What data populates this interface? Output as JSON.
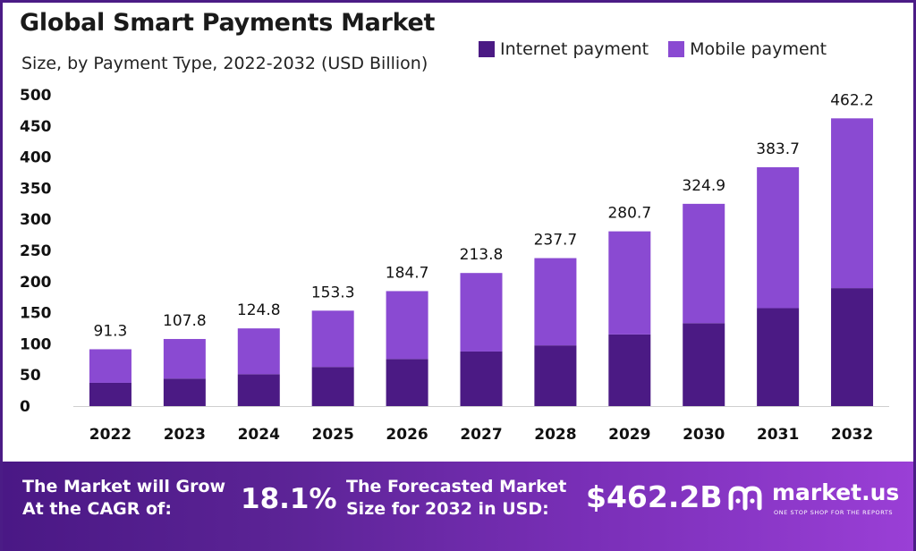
{
  "colors": {
    "internet": "#4b1a84",
    "mobile": "#8a4ad2",
    "brand": "#4b1c86"
  },
  "chart_data": {
    "type": "bar",
    "stacked": true,
    "title": "Global Smart Payments Market",
    "subtitle": "Size, by Payment Type, 2022-2032 (USD Billion)",
    "categories": [
      "2022",
      "2023",
      "2024",
      "2025",
      "2026",
      "2027",
      "2028",
      "2029",
      "2030",
      "2031",
      "2032"
    ],
    "series": [
      {
        "name": "Internet payment",
        "values": [
          37.4,
          44.2,
          51.2,
          62.9,
          75.7,
          87.7,
          97.5,
          115.1,
          133.2,
          157.3,
          189.5
        ]
      },
      {
        "name": "Mobile payment",
        "values": [
          53.9,
          63.6,
          73.6,
          90.4,
          109.0,
          126.1,
          140.2,
          165.6,
          191.7,
          226.4,
          272.7
        ]
      }
    ],
    "totals": [
      "91.3",
      "107.8",
      "124.8",
      "153.3",
      "184.7",
      "213.8",
      "237.7",
      "280.7",
      "324.9",
      "383.7",
      "462.2"
    ],
    "ylim": [
      0,
      500
    ],
    "yticks": [
      0,
      50,
      100,
      150,
      200,
      250,
      300,
      350,
      400,
      450,
      500
    ],
    "legend_position": "top-right",
    "grid": false
  },
  "footer": {
    "cagr_line1": "The Market will Grow",
    "cagr_line2": "At the CAGR of:",
    "cagr_value": "18.1%",
    "forecast_line1": "The Forecasted Market",
    "forecast_line2": "Size for 2032 in USD:",
    "forecast_value": "$462.2B",
    "brand_name": "market.us",
    "brand_tagline": "ONE STOP SHOP FOR THE REPORTS"
  }
}
